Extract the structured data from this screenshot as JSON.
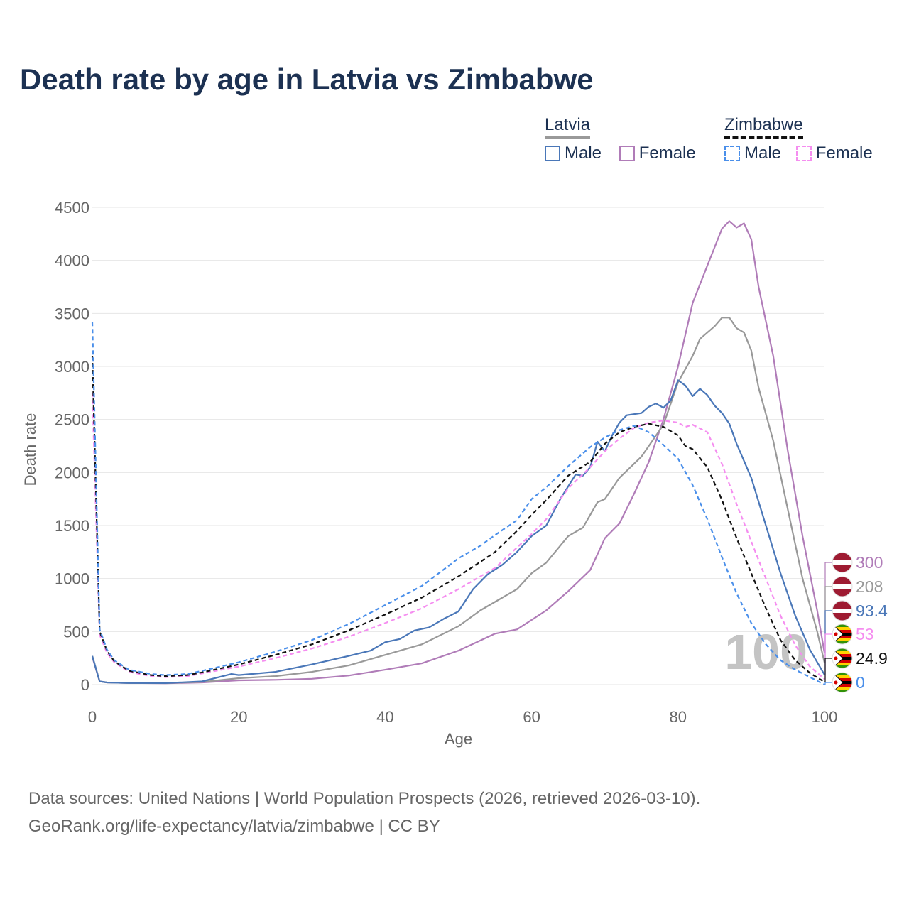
{
  "title": "Death rate by age in Latvia vs Zimbabwe",
  "legend": {
    "latvia_title": "Latvia",
    "zimbabwe_title": "Zimbabwe",
    "male": "Male",
    "female": "Female"
  },
  "source": {
    "line1": "Data sources: United Nations | World Population Prospects (2026, retrieved 2026-03-10).",
    "line2": "GeoRank.org/life-expectancy/latvia/zimbabwe | CC BY"
  },
  "watermark": "100",
  "colors": {
    "latvia_male": "#4a77b8",
    "latvia_female": "#b07cb8",
    "latvia_total": "#999999",
    "zim_male": "#4a8fea",
    "zim_female": "#f58ef0",
    "zim_total": "#111111",
    "text_dark": "#1c3152",
    "grid": "#e6e6e6"
  },
  "end_labels": [
    {
      "series": "latvia_female",
      "label": "300",
      "flag": "latvia"
    },
    {
      "series": "latvia_total",
      "label": "208",
      "flag": "latvia"
    },
    {
      "series": "latvia_male",
      "label": "93.4",
      "flag": "latvia"
    },
    {
      "series": "zim_female",
      "label": "53",
      "flag": "zimbabwe"
    },
    {
      "series": "zim_total",
      "label": "24.9",
      "flag": "zimbabwe"
    },
    {
      "series": "zim_male",
      "label": "0",
      "flag": "zimbabwe"
    }
  ],
  "chart_data": {
    "type": "line",
    "title": "Death rate by age in Latvia vs Zimbabwe",
    "xlabel": "Age",
    "ylabel": "Death rate",
    "xlim": [
      0,
      100
    ],
    "ylim": [
      0,
      4500
    ],
    "xticks": [
      0,
      20,
      40,
      60,
      80,
      100
    ],
    "yticks": [
      0,
      500,
      1000,
      1500,
      2000,
      2500,
      3000,
      3500,
      4000,
      4500
    ],
    "series": [
      {
        "name": "Latvia Female",
        "key": "latvia_female",
        "dashed": false,
        "points": [
          [
            0,
            260
          ],
          [
            1,
            30
          ],
          [
            2,
            20
          ],
          [
            5,
            15
          ],
          [
            10,
            12
          ],
          [
            15,
            20
          ],
          [
            20,
            40
          ],
          [
            25,
            45
          ],
          [
            30,
            55
          ],
          [
            35,
            85
          ],
          [
            40,
            140
          ],
          [
            45,
            200
          ],
          [
            50,
            320
          ],
          [
            55,
            480
          ],
          [
            58,
            520
          ],
          [
            60,
            610
          ],
          [
            62,
            700
          ],
          [
            65,
            880
          ],
          [
            68,
            1080
          ],
          [
            70,
            1380
          ],
          [
            72,
            1520
          ],
          [
            74,
            1800
          ],
          [
            76,
            2100
          ],
          [
            78,
            2500
          ],
          [
            80,
            3000
          ],
          [
            82,
            3600
          ],
          [
            84,
            3950
          ],
          [
            86,
            4300
          ],
          [
            87,
            4370
          ],
          [
            88,
            4310
          ],
          [
            89,
            4350
          ],
          [
            90,
            4200
          ],
          [
            91,
            3750
          ],
          [
            93,
            3100
          ],
          [
            95,
            2200
          ],
          [
            97,
            1400
          ],
          [
            99,
            700
          ],
          [
            100,
            300
          ]
        ]
      },
      {
        "name": "Latvia Total",
        "key": "latvia_total",
        "dashed": false,
        "points": [
          [
            0,
            270
          ],
          [
            1,
            30
          ],
          [
            2,
            20
          ],
          [
            5,
            15
          ],
          [
            10,
            14
          ],
          [
            15,
            25
          ],
          [
            20,
            60
          ],
          [
            25,
            80
          ],
          [
            30,
            120
          ],
          [
            35,
            180
          ],
          [
            40,
            280
          ],
          [
            45,
            380
          ],
          [
            50,
            550
          ],
          [
            53,
            700
          ],
          [
            55,
            780
          ],
          [
            58,
            900
          ],
          [
            60,
            1050
          ],
          [
            62,
            1150
          ],
          [
            65,
            1400
          ],
          [
            67,
            1480
          ],
          [
            69,
            1720
          ],
          [
            70,
            1750
          ],
          [
            72,
            1950
          ],
          [
            75,
            2150
          ],
          [
            78,
            2450
          ],
          [
            80,
            2850
          ],
          [
            82,
            3100
          ],
          [
            83,
            3260
          ],
          [
            85,
            3380
          ],
          [
            86,
            3460
          ],
          [
            87,
            3460
          ],
          [
            88,
            3360
          ],
          [
            89,
            3320
          ],
          [
            90,
            3150
          ],
          [
            91,
            2800
          ],
          [
            93,
            2300
          ],
          [
            95,
            1650
          ],
          [
            97,
            1000
          ],
          [
            99,
            500
          ],
          [
            100,
            208
          ]
        ]
      },
      {
        "name": "Latvia Male",
        "key": "latvia_male",
        "dashed": false,
        "points": [
          [
            0,
            270
          ],
          [
            1,
            30
          ],
          [
            2,
            20
          ],
          [
            5,
            15
          ],
          [
            10,
            14
          ],
          [
            15,
            30
          ],
          [
            19,
            100
          ],
          [
            20,
            90
          ],
          [
            25,
            120
          ],
          [
            30,
            190
          ],
          [
            35,
            270
          ],
          [
            38,
            320
          ],
          [
            40,
            400
          ],
          [
            42,
            430
          ],
          [
            44,
            510
          ],
          [
            46,
            540
          ],
          [
            48,
            620
          ],
          [
            50,
            690
          ],
          [
            52,
            900
          ],
          [
            54,
            1040
          ],
          [
            56,
            1130
          ],
          [
            58,
            1250
          ],
          [
            60,
            1400
          ],
          [
            62,
            1500
          ],
          [
            64,
            1760
          ],
          [
            66,
            1980
          ],
          [
            67,
            1970
          ],
          [
            68,
            2050
          ],
          [
            69,
            2290
          ],
          [
            70,
            2200
          ],
          [
            71,
            2350
          ],
          [
            72,
            2470
          ],
          [
            73,
            2540
          ],
          [
            75,
            2560
          ],
          [
            76,
            2620
          ],
          [
            77,
            2650
          ],
          [
            78,
            2610
          ],
          [
            79,
            2680
          ],
          [
            80,
            2870
          ],
          [
            81,
            2820
          ],
          [
            82,
            2720
          ],
          [
            83,
            2790
          ],
          [
            84,
            2730
          ],
          [
            85,
            2630
          ],
          [
            86,
            2560
          ],
          [
            87,
            2460
          ],
          [
            88,
            2270
          ],
          [
            90,
            1950
          ],
          [
            92,
            1500
          ],
          [
            94,
            1050
          ],
          [
            96,
            650
          ],
          [
            98,
            330
          ],
          [
            100,
            93.4
          ]
        ]
      },
      {
        "name": "Zimbabwe Female",
        "key": "zim_female",
        "dashed": true,
        "points": [
          [
            0,
            2750
          ],
          [
            1,
            470
          ],
          [
            2,
            300
          ],
          [
            3,
            210
          ],
          [
            5,
            120
          ],
          [
            8,
            80
          ],
          [
            10,
            70
          ],
          [
            13,
            80
          ],
          [
            15,
            105
          ],
          [
            20,
            170
          ],
          [
            25,
            250
          ],
          [
            30,
            340
          ],
          [
            35,
            450
          ],
          [
            40,
            580
          ],
          [
            45,
            720
          ],
          [
            50,
            900
          ],
          [
            55,
            1100
          ],
          [
            60,
            1420
          ],
          [
            62,
            1560
          ],
          [
            65,
            1850
          ],
          [
            68,
            2050
          ],
          [
            70,
            2200
          ],
          [
            72,
            2320
          ],
          [
            74,
            2420
          ],
          [
            76,
            2470
          ],
          [
            77,
            2480
          ],
          [
            78,
            2490
          ],
          [
            80,
            2470
          ],
          [
            81,
            2430
          ],
          [
            82,
            2450
          ],
          [
            84,
            2380
          ],
          [
            86,
            2080
          ],
          [
            88,
            1700
          ],
          [
            90,
            1350
          ],
          [
            92,
            1000
          ],
          [
            94,
            650
          ],
          [
            96,
            370
          ],
          [
            98,
            170
          ],
          [
            100,
            53
          ]
        ]
      },
      {
        "name": "Zimbabwe Total",
        "key": "zim_total",
        "dashed": true,
        "points": [
          [
            0,
            3100
          ],
          [
            1,
            500
          ],
          [
            2,
            320
          ],
          [
            3,
            220
          ],
          [
            5,
            130
          ],
          [
            8,
            90
          ],
          [
            10,
            80
          ],
          [
            13,
            90
          ],
          [
            15,
            115
          ],
          [
            20,
            190
          ],
          [
            25,
            280
          ],
          [
            30,
            380
          ],
          [
            35,
            510
          ],
          [
            40,
            660
          ],
          [
            45,
            820
          ],
          [
            50,
            1020
          ],
          [
            55,
            1250
          ],
          [
            58,
            1450
          ],
          [
            60,
            1600
          ],
          [
            62,
            1740
          ],
          [
            65,
            1970
          ],
          [
            68,
            2100
          ],
          [
            70,
            2270
          ],
          [
            72,
            2380
          ],
          [
            74,
            2430
          ],
          [
            76,
            2460
          ],
          [
            78,
            2430
          ],
          [
            80,
            2350
          ],
          [
            81,
            2250
          ],
          [
            82,
            2220
          ],
          [
            84,
            2050
          ],
          [
            86,
            1740
          ],
          [
            88,
            1380
          ],
          [
            90,
            1050
          ],
          [
            92,
            720
          ],
          [
            94,
            420
          ],
          [
            96,
            230
          ],
          [
            98,
            110
          ],
          [
            100,
            24.9
          ]
        ]
      },
      {
        "name": "Zimbabwe Male",
        "key": "zim_male",
        "dashed": true,
        "points": [
          [
            0,
            3420
          ],
          [
            1,
            520
          ],
          [
            2,
            330
          ],
          [
            3,
            230
          ],
          [
            5,
            140
          ],
          [
            8,
            100
          ],
          [
            10,
            90
          ],
          [
            13,
            100
          ],
          [
            15,
            130
          ],
          [
            20,
            210
          ],
          [
            25,
            310
          ],
          [
            30,
            420
          ],
          [
            35,
            570
          ],
          [
            40,
            750
          ],
          [
            45,
            930
          ],
          [
            50,
            1190
          ],
          [
            53,
            1310
          ],
          [
            55,
            1410
          ],
          [
            58,
            1550
          ],
          [
            60,
            1750
          ],
          [
            62,
            1860
          ],
          [
            65,
            2060
          ],
          [
            68,
            2240
          ],
          [
            70,
            2330
          ],
          [
            72,
            2400
          ],
          [
            74,
            2440
          ],
          [
            76,
            2380
          ],
          [
            78,
            2260
          ],
          [
            80,
            2130
          ],
          [
            82,
            1880
          ],
          [
            84,
            1560
          ],
          [
            86,
            1200
          ],
          [
            88,
            860
          ],
          [
            90,
            580
          ],
          [
            92,
            380
          ],
          [
            94,
            230
          ],
          [
            96,
            140
          ],
          [
            98,
            70
          ],
          [
            100,
            0
          ]
        ]
      }
    ]
  }
}
